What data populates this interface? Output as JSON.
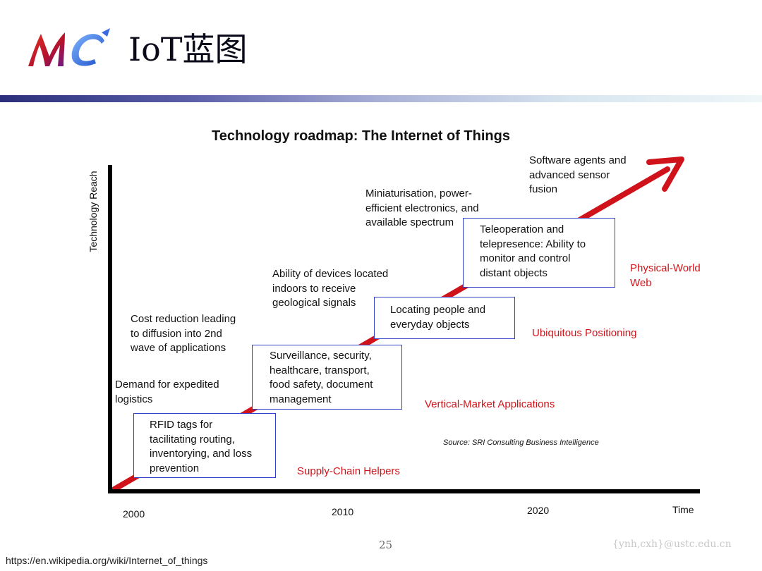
{
  "slide": {
    "logo_text": "MC",
    "title": "IoT蓝图",
    "page_number": "25",
    "footer_email": "{ynh,cxh}@ustc.edu.cn",
    "footer_url": "https://en.wikipedia.org/wiki/Internet_of_things"
  },
  "diagram": {
    "title": "Technology roadmap: The Internet of Things",
    "y_axis_label": "Technology Reach",
    "x_axis_label": "Time",
    "ticks": [
      "2000",
      "2010",
      "2020"
    ],
    "source": "Source: SRI Consulting Business Intelligence",
    "colors": {
      "arrow": "#d0131a",
      "box_border": "#3140c8",
      "era_text": "#d0131a"
    },
    "boxes": [
      {
        "lines": [
          "RFID tags for",
          "tacilitating routing,",
          "inventorying, and loss",
          "prevention"
        ]
      },
      {
        "lines": [
          "Surveillance, security,",
          "healthcare, transport,",
          "food safety, document",
          "management"
        ]
      },
      {
        "lines": [
          "Locating people and",
          "everyday objects"
        ]
      },
      {
        "lines": [
          "Teleoperation and",
          "telepresence: Ability to",
          "monitor and control",
          "distant objects"
        ]
      }
    ],
    "drivers": [
      {
        "lines": [
          "Demand for expedited",
          "logistics"
        ]
      },
      {
        "lines": [
          "Cost reduction leading",
          "to diffusion into 2nd",
          "wave of applications"
        ]
      },
      {
        "lines": [
          "Ability of devices located",
          "indoors to receive",
          "geological signals"
        ]
      },
      {
        "lines": [
          "Miniaturisation, power-",
          "efficient electronics, and",
          "available spectrum"
        ]
      },
      {
        "lines": [
          "Software agents and",
          "advanced sensor",
          "fusion"
        ]
      }
    ],
    "eras": [
      {
        "lines": [
          "Supply-Chain Helpers"
        ]
      },
      {
        "lines": [
          "Vertical-Market Applications"
        ]
      },
      {
        "lines": [
          "Ubiquitous Positioning"
        ]
      },
      {
        "lines": [
          "Physical-World",
          "Web"
        ]
      }
    ]
  }
}
